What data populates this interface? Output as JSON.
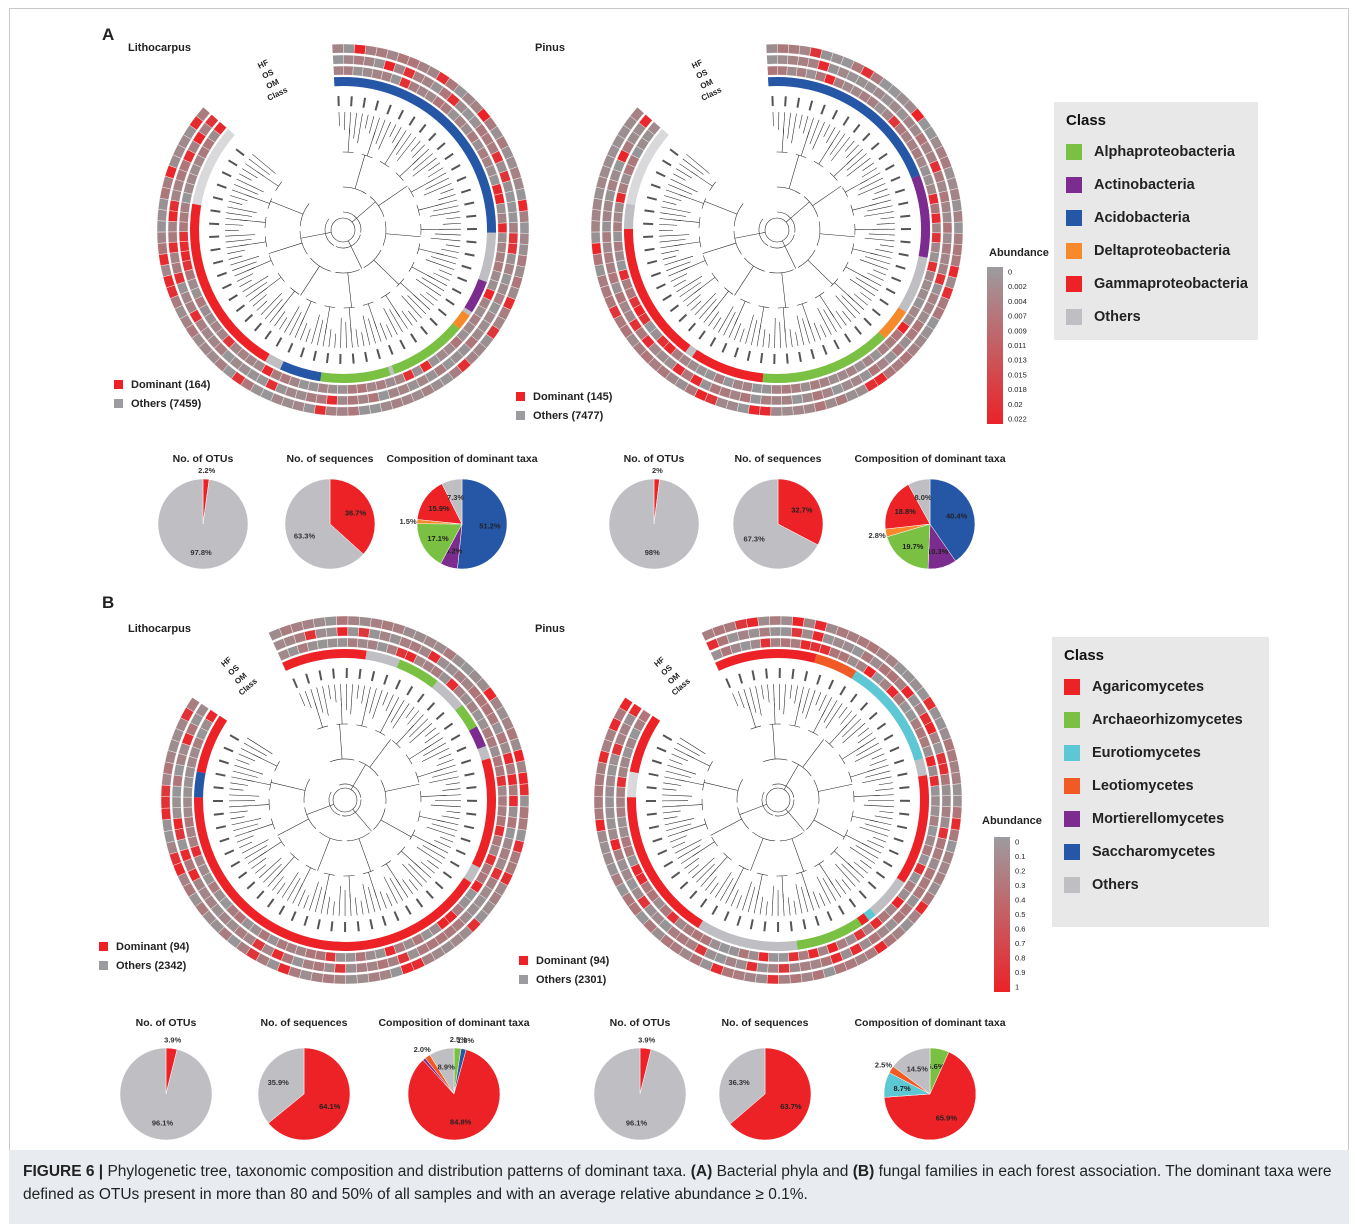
{
  "caption": {
    "label": "FIGURE 6 |",
    "text_1": " Phylogenetic tree, taxonomic composition and distribution patterns of dominant taxa. ",
    "a_tag": "(A)",
    "text_2": " Bacterial phyla and ",
    "b_tag": "(B)",
    "text_3": " fungal families in each forest association. The dominant taxa were defined as OTUs present in more than 80 and 50% of all samples and with an average relative abundance ≥ 0.1%."
  },
  "panels": [
    {
      "letter": "A",
      "ring_labels": [
        "HF",
        "OS",
        "OM",
        "Class"
      ],
      "trees": [
        {
          "title": "Lithocarpus",
          "dominant_label": "Dominant (164)",
          "others_label": "Others (7459)",
          "class_arcs": [
            {
              "cls": "Acidobacteria",
              "from": 0.0,
              "to": 0.3
            },
            {
              "cls": "Others",
              "from": 0.3,
              "to": 0.36
            },
            {
              "cls": "Actinobacteria",
              "from": 0.36,
              "to": 0.4
            },
            {
              "cls": "Others",
              "from": 0.4,
              "to": 0.405
            },
            {
              "cls": "Deltaproteobacteria",
              "from": 0.405,
              "to": 0.425
            },
            {
              "cls": "Alphaproteobacteria",
              "from": 0.425,
              "to": 0.52
            },
            {
              "cls": "Others",
              "from": 0.52,
              "to": 0.525
            },
            {
              "cls": "Alphaproteobacteria",
              "from": 0.525,
              "to": 0.61
            },
            {
              "cls": "Acidobacteria",
              "from": 0.61,
              "to": 0.66
            },
            {
              "cls": "Others",
              "from": 0.66,
              "to": 0.68
            },
            {
              "cls": "Gammaproteobacteria",
              "from": 0.68,
              "to": 0.9
            }
          ]
        },
        {
          "title": "Pinus",
          "dominant_label": "Dominant (145)",
          "others_label": "Others (7477)",
          "class_arcs": [
            {
              "cls": "Acidobacteria",
              "from": 0.0,
              "to": 0.23
            },
            {
              "cls": "Actinobacteria",
              "from": 0.23,
              "to": 0.33
            },
            {
              "cls": "Others",
              "from": 0.33,
              "to": 0.4
            },
            {
              "cls": "Deltaproteobacteria",
              "from": 0.4,
              "to": 0.44
            },
            {
              "cls": "Alphaproteobacteria",
              "from": 0.44,
              "to": 0.6
            },
            {
              "cls": "Gammaproteobacteria",
              "from": 0.6,
              "to": 0.69
            },
            {
              "cls": "Others",
              "from": 0.69,
              "to": 0.7
            },
            {
              "cls": "Gammaproteobacteria",
              "from": 0.7,
              "to": 0.87
            },
            {
              "cls": "Others",
              "from": 0.87,
              "to": 0.9
            }
          ]
        }
      ],
      "legend": {
        "title": "Class",
        "items": [
          {
            "label": "Alphaproteobacteria",
            "color": "#7ac143"
          },
          {
            "label": "Actinobacteria",
            "color": "#7b2c8e"
          },
          {
            "label": "Acidobacteria",
            "color": "#2656a6"
          },
          {
            "label": "Deltaproteobacteria",
            "color": "#f6892a"
          },
          {
            "label": "Gammaproteobacteria",
            "color": "#ec2227"
          },
          {
            "label": "Others",
            "color": "#bfbfc3"
          }
        ]
      },
      "abundance": {
        "title": "Abundance",
        "ticks": [
          "0",
          "0.002",
          "0.004",
          "0.007",
          "0.009",
          "0.011",
          "0.013",
          "0.015",
          "0.018",
          "0.02",
          "0.022"
        ]
      }
    },
    {
      "letter": "B",
      "ring_labels": [
        "HF",
        "OS",
        "OM",
        "Class"
      ],
      "trees": [
        {
          "title": "Lithocarpus",
          "dominant_label": "Dominant (94)",
          "others_label": "Others (2342)",
          "class_arcs": [
            {
              "cls": "Agaricomycetes",
              "from": 0.0,
              "to": 0.1
            },
            {
              "cls": "Others",
              "from": 0.1,
              "to": 0.14
            },
            {
              "cls": "Archaeorhizomycetes",
              "from": 0.14,
              "to": 0.19
            },
            {
              "cls": "Others",
              "from": 0.19,
              "to": 0.23
            },
            {
              "cls": "Archaeorhizomycetes",
              "from": 0.23,
              "to": 0.26
            },
            {
              "cls": "Mortierellomycetes",
              "from": 0.26,
              "to": 0.285
            },
            {
              "cls": "Others",
              "from": 0.285,
              "to": 0.3
            },
            {
              "cls": "Agaricomycetes",
              "from": 0.3,
              "to": 0.43
            },
            {
              "cls": "Others",
              "from": 0.43,
              "to": 0.45
            },
            {
              "cls": "Agaricomycetes",
              "from": 0.45,
              "to": 0.9
            },
            {
              "cls": "Saccharomycetes",
              "from": 0.9,
              "to": 0.93
            },
            {
              "cls": "Agaricomycetes",
              "from": 0.93,
              "to": 1.0
            }
          ]
        },
        {
          "title": "Pinus",
          "dominant_label": "Dominant (94)",
          "others_label": "Others (2301)",
          "class_arcs": [
            {
              "cls": "Agaricomycetes",
              "from": 0.0,
              "to": 0.12
            },
            {
              "cls": "Leotiomycetes",
              "from": 0.12,
              "to": 0.17
            },
            {
              "cls": "Eurotiomycetes",
              "from": 0.17,
              "to": 0.3
            },
            {
              "cls": "Others",
              "from": 0.3,
              "to": 0.32
            },
            {
              "cls": "Agaricomycetes",
              "from": 0.32,
              "to": 0.45
            },
            {
              "cls": "Others",
              "from": 0.45,
              "to": 0.5
            },
            {
              "cls": "Eurotiomycetes",
              "from": 0.5,
              "to": 0.51
            },
            {
              "cls": "Agaricomycetes",
              "from": 0.51,
              "to": 0.52
            },
            {
              "cls": "Archaeorhizomycetes",
              "from": 0.52,
              "to": 0.6
            },
            {
              "cls": "Others",
              "from": 0.6,
              "to": 0.72
            },
            {
              "cls": "Agaricomycetes",
              "from": 0.72,
              "to": 0.9
            },
            {
              "cls": "Agaricomycetes",
              "from": 0.93,
              "to": 1.0
            }
          ]
        }
      ],
      "legend": {
        "title": "Class",
        "items": [
          {
            "label": "Agaricomycetes",
            "color": "#ec2227"
          },
          {
            "label": "Archaeorhizomycetes",
            "color": "#7ac143"
          },
          {
            "label": "Eurotiomycetes",
            "color": "#5dc8d3"
          },
          {
            "label": "Leotiomycetes",
            "color": "#f15a24"
          },
          {
            "label": "Mortierellomycetes",
            "color": "#7b2c8e"
          },
          {
            "label": "Saccharomycetes",
            "color": "#2656a6"
          },
          {
            "label": "Others",
            "color": "#bfbfc3"
          }
        ]
      },
      "abundance": {
        "title": "Abundance",
        "ticks": [
          "0",
          "0.1",
          "0.2",
          "0.3",
          "0.4",
          "0.5",
          "0.6",
          "0.7",
          "0.8",
          "0.9",
          "1"
        ]
      }
    }
  ],
  "chart_data": [
    {
      "type": "pie",
      "panel": "A",
      "title": "No. of OTUs",
      "tree": "Lithocarpus",
      "slices": [
        {
          "label": "2.2%",
          "value": 2.2,
          "color": "#ec2227"
        },
        {
          "label": "97.8%",
          "value": 97.8,
          "color": "#bfbfc3"
        }
      ]
    },
    {
      "type": "pie",
      "panel": "A",
      "title": "No. of sequences",
      "tree": "Lithocarpus",
      "slices": [
        {
          "label": "36.7%",
          "value": 36.7,
          "color": "#ec2227"
        },
        {
          "label": "63.3%",
          "value": 63.3,
          "color": "#bfbfc3"
        }
      ]
    },
    {
      "type": "pie",
      "panel": "A",
      "title": "Composition of dominant taxa",
      "tree": "Lithocarpus",
      "slices": [
        {
          "label": "51.2%",
          "value": 51.2,
          "color": "#2656a6"
        },
        {
          "label": "6.2%",
          "value": 6.2,
          "color": "#7b2c8e"
        },
        {
          "label": "17.1%",
          "value": 17.1,
          "color": "#7ac143"
        },
        {
          "label": "1.5%",
          "value": 1.5,
          "color": "#f6892a"
        },
        {
          "label": "15.9%",
          "value": 15.9,
          "color": "#ec2227"
        },
        {
          "label": "7.3%",
          "value": 7.3,
          "color": "#bfbfc3"
        }
      ]
    },
    {
      "type": "pie",
      "panel": "A",
      "title": "No. of OTUs",
      "tree": "Pinus",
      "slices": [
        {
          "label": "2%",
          "value": 2.0,
          "color": "#ec2227"
        },
        {
          "label": "98%",
          "value": 98.0,
          "color": "#bfbfc3"
        }
      ]
    },
    {
      "type": "pie",
      "panel": "A",
      "title": "No. of sequences",
      "tree": "Pinus",
      "slices": [
        {
          "label": "32.7%",
          "value": 32.7,
          "color": "#ec2227"
        },
        {
          "label": "67.3%",
          "value": 67.3,
          "color": "#bfbfc3"
        }
      ]
    },
    {
      "type": "pie",
      "panel": "A",
      "title": "Composition of dominant taxa",
      "tree": "Pinus",
      "slices": [
        {
          "label": "40.4%",
          "value": 40.4,
          "color": "#2656a6"
        },
        {
          "label": "10.3%",
          "value": 10.3,
          "color": "#7b2c8e"
        },
        {
          "label": "19.7%",
          "value": 19.7,
          "color": "#7ac143"
        },
        {
          "label": "2.8%",
          "value": 2.8,
          "color": "#f6892a"
        },
        {
          "label": "18.8%",
          "value": 18.8,
          "color": "#ec2227"
        },
        {
          "label": "8.0%",
          "value": 8.0,
          "color": "#bfbfc3"
        }
      ]
    },
    {
      "type": "pie",
      "panel": "B",
      "title": "No. of OTUs",
      "tree": "Lithocarpus",
      "slices": [
        {
          "label": "3.9%",
          "value": 3.9,
          "color": "#ec2227"
        },
        {
          "label": "96.1%",
          "value": 96.1,
          "color": "#bfbfc3"
        }
      ]
    },
    {
      "type": "pie",
      "panel": "B",
      "title": "No. of sequences",
      "tree": "Lithocarpus",
      "slices": [
        {
          "label": "64.1%",
          "value": 64.1,
          "color": "#ec2227"
        },
        {
          "label": "35.9%",
          "value": 35.9,
          "color": "#bfbfc3"
        }
      ]
    },
    {
      "type": "pie",
      "panel": "B",
      "title": "Composition of dominant taxa",
      "tree": "Lithocarpus",
      "slices": [
        {
          "label": "2.5%",
          "value": 2.5,
          "color": "#7ac143"
        },
        {
          "label": "1.8%",
          "value": 1.8,
          "color": "#2656a6"
        },
        {
          "label": "84.8%",
          "value": 84.8,
          "color": "#ec2227"
        },
        {
          "label": "",
          "value": 1.0,
          "color": "#7b2c8e"
        },
        {
          "label": "2.0%",
          "value": 2.0,
          "color": "#f15a24"
        },
        {
          "label": "8.9%",
          "value": 8.9,
          "color": "#bfbfc3"
        }
      ]
    },
    {
      "type": "pie",
      "panel": "B",
      "title": "No. of OTUs",
      "tree": "Pinus",
      "slices": [
        {
          "label": "3.9%",
          "value": 3.9,
          "color": "#ec2227"
        },
        {
          "label": "96.1%",
          "value": 96.1,
          "color": "#bfbfc3"
        }
      ]
    },
    {
      "type": "pie",
      "panel": "B",
      "title": "No. of sequences",
      "tree": "Pinus",
      "slices": [
        {
          "label": "63.7%",
          "value": 63.7,
          "color": "#ec2227"
        },
        {
          "label": "36.3%",
          "value": 36.3,
          "color": "#bfbfc3"
        }
      ]
    },
    {
      "type": "pie",
      "panel": "B",
      "title": "Composition of dominant taxa",
      "tree": "Pinus",
      "slices": [
        {
          "label": "6.6%",
          "value": 6.6,
          "color": "#7ac143"
        },
        {
          "label": "65.9%",
          "value": 65.9,
          "color": "#ec2227"
        },
        {
          "label": "8.7%",
          "value": 8.7,
          "color": "#5dc8d3"
        },
        {
          "label": "2.5%",
          "value": 2.5,
          "color": "#f15a24"
        },
        {
          "label": "14.5%",
          "value": 14.5,
          "color": "#bfbfc3"
        }
      ]
    }
  ]
}
